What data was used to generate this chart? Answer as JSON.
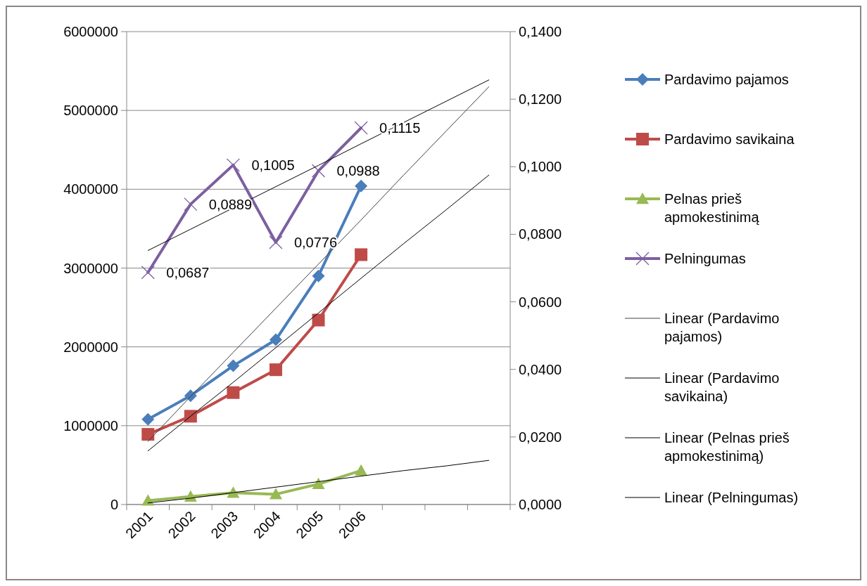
{
  "chart_data": {
    "type": "line",
    "categories": [
      "2001",
      "2002",
      "2003",
      "2004",
      "2005",
      "2006",
      null,
      null,
      null
    ],
    "ylim": [
      0,
      6000000
    ],
    "yticks": [
      0,
      1000000,
      2000000,
      3000000,
      4000000,
      5000000,
      6000000
    ],
    "y2lim": [
      0,
      0.14
    ],
    "y2ticks": [
      {
        "value": 0,
        "label": "0,0000"
      },
      {
        "value": 0.02,
        "label": "0,0200"
      },
      {
        "value": 0.04,
        "label": "0,0400"
      },
      {
        "value": 0.06,
        "label": "0,0600"
      },
      {
        "value": 0.08,
        "label": "0,0800"
      },
      {
        "value": 0.1,
        "label": "0,1000"
      },
      {
        "value": 0.12,
        "label": "0,1200"
      },
      {
        "value": 0.14,
        "label": "0,1400"
      }
    ],
    "grid": "y",
    "legend": "right",
    "series": [
      {
        "name": "Pardavimo pajamos",
        "color": "#4a7ebb",
        "marker": "diamond",
        "values": [
          1080000,
          1380000,
          1760000,
          2090000,
          2900000,
          4040000,
          null,
          null,
          null
        ]
      },
      {
        "name": "Pardavimo savikaina",
        "color": "#be4b48",
        "marker": "square",
        "values": [
          890000,
          1120000,
          1420000,
          1710000,
          2340000,
          3170000,
          null,
          null,
          null
        ]
      },
      {
        "name": "Pelnas prieš apmokestinimą",
        "color": "#98b954",
        "marker": "triangle",
        "values": [
          50000,
          100000,
          150000,
          130000,
          260000,
          430000,
          null,
          null,
          null
        ]
      },
      {
        "name": "Pelningumas",
        "color": "#7d5fa0",
        "marker": "cross",
        "axis": "y2",
        "values": [
          0.0687,
          0.0889,
          0.1005,
          0.0776,
          0.0988,
          0.1115,
          null,
          null,
          null
        ],
        "value_labels": [
          "0,0687",
          "0,0889",
          "0,1005",
          "0,0776",
          "0,0988",
          "0,1115",
          null,
          null,
          null
        ]
      },
      {
        "name": "Linear (Pardavimo pajamos)",
        "color": "#404040",
        "marker": "none",
        "values": [
          800000,
          1370000,
          1930000,
          2490000,
          3050000,
          3610000,
          4180000,
          4740000,
          5300000
        ]
      },
      {
        "name": "Linear (Pardavimo savikaina)",
        "color": "#000000",
        "marker": "none",
        "values": [
          680000,
          1120000,
          1550000,
          1990000,
          2430000,
          2870000,
          3310000,
          3740000,
          4180000
        ]
      },
      {
        "name": "Linear (Pelnas prieš apmokestinimą)",
        "color": "#000000",
        "marker": "none",
        "values": [
          20000,
          80000,
          150000,
          220000,
          290000,
          360000,
          430000,
          490000,
          560000
        ]
      },
      {
        "name": "Linear (Pelningumas)",
        "color": "#000000",
        "marker": "none",
        "axis": "y2",
        "values": [
          0.0752,
          0.0815,
          0.0878,
          0.0941,
          0.1004,
          0.1068,
          0.1131,
          0.1194,
          0.1257
        ]
      }
    ]
  }
}
